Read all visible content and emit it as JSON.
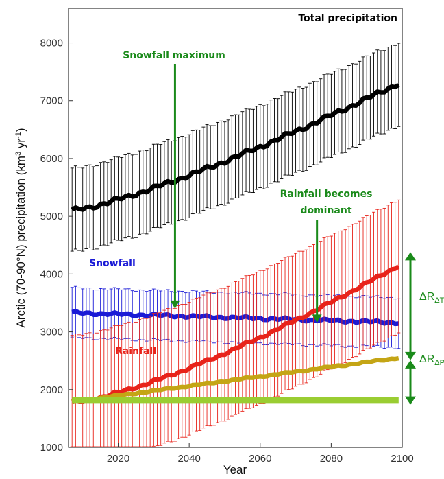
{
  "chart_data": {
    "type": "line",
    "xlabel": "Year",
    "ylabel_main": "Arctic (70-90°N) precipitation (km",
    "ylabel_sup1": "3",
    "ylabel_mid": " yr",
    "ylabel_sup2": "-1",
    "ylabel_end": ")",
    "xlim": [
      2006,
      2100
    ],
    "ylim": [
      1000,
      8600
    ],
    "x_ticks": [
      2020,
      2040,
      2060,
      2080,
      2100
    ],
    "y_ticks": [
      1000,
      2000,
      3000,
      4000,
      5000,
      6000,
      7000,
      8000
    ],
    "grid": false,
    "series": [
      {
        "name": "Total precipitation",
        "color": "#000000",
        "start": 5100,
        "end": 7300,
        "err": 720,
        "curve": 1.25,
        "noise": 45
      },
      {
        "name": "Snowfall",
        "color": "#1a1ad6",
        "start": 3330,
        "end": 3160,
        "err": 430,
        "curve": 1.0,
        "noise": 30
      },
      {
        "name": "Rainfall",
        "color": "#e8231a",
        "start": 1780,
        "end": 4150,
        "err": 1150,
        "curve": 1.35,
        "noise": 30
      },
      {
        "name": "",
        "color": "#c4a515",
        "start": 1790,
        "end": 2550,
        "err": 0,
        "curve": 1.0,
        "noise": 15
      },
      {
        "name": "",
        "color": "#9acd32",
        "start": 1820,
        "end": 1820,
        "err": 0,
        "curve": 1.0,
        "noise": 0
      }
    ],
    "annotations": {
      "total_label": "Total precipitation",
      "snowfall_label": "Snowfall",
      "rainfall_label": "Rainfall",
      "snow_max_label": "Snowfall maximum",
      "snow_max_year": 2036,
      "snow_max_value": 3400,
      "rain_dom_label1": "Rainfall becomes",
      "rain_dom_label2": "dominant",
      "rain_dom_year": 2076,
      "rain_dom_value": 3300,
      "delta_t": "ΔR",
      "delta_t_sub": "ΔT",
      "delta_p": "ΔR",
      "delta_p_sub": "ΔP"
    }
  }
}
